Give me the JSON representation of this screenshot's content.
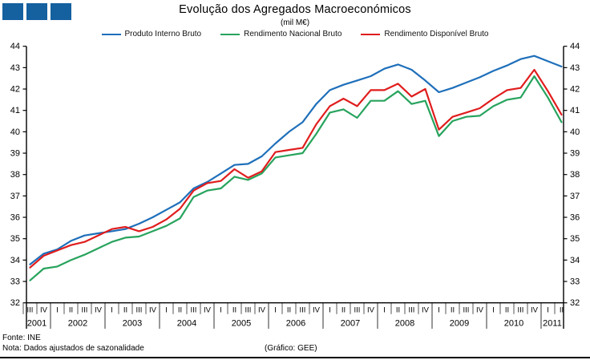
{
  "title": "Evolução dos Agregados Macroeconómicos",
  "subtitle": "(mil M€)",
  "legend": [
    {
      "label": "Produto Interno Bruto",
      "color": "#1e6fba"
    },
    {
      "label": "Rendimento Nacional Bruto",
      "color": "#27a35d"
    },
    {
      "label": "Rendimento Disponível Bruto",
      "color": "#e01d1d"
    }
  ],
  "footer": {
    "source": "Fonte: INE",
    "note": "Nota: Dados ajustados de sazonalidade",
    "credit": "(Gráfico: GEE)"
  },
  "colors": {
    "axis": "#000000",
    "quarter_tick": "#555555",
    "year_separator": "#999999",
    "logo_square": "#15609f"
  },
  "chart_data": {
    "type": "line",
    "title": "Evolução dos Agregados Macroeconómicos",
    "subtitle": "(mil M€)",
    "ylabel": "",
    "xlabel": "",
    "ylim": [
      32,
      44
    ],
    "ytick_step": 1,
    "grid": false,
    "legend_position": "top",
    "x_quarters": [
      "III",
      "IV",
      "I",
      "II",
      "III",
      "IV",
      "I",
      "II",
      "III",
      "IV",
      "I",
      "II",
      "III",
      "IV",
      "I",
      "II",
      "III",
      "IV",
      "I",
      "II",
      "III",
      "IV",
      "I",
      "II",
      "III",
      "IV",
      "I",
      "II",
      "III",
      "IV",
      "I",
      "II",
      "III",
      "IV",
      "I",
      "II",
      "III",
      "IV",
      "I",
      "II"
    ],
    "years": [
      {
        "label": "2001",
        "quarters": 2
      },
      {
        "label": "2002",
        "quarters": 4
      },
      {
        "label": "2003",
        "quarters": 4
      },
      {
        "label": "2004",
        "quarters": 4
      },
      {
        "label": "2005",
        "quarters": 4
      },
      {
        "label": "2006",
        "quarters": 4
      },
      {
        "label": "2007",
        "quarters": 4
      },
      {
        "label": "2008",
        "quarters": 4
      },
      {
        "label": "2009",
        "quarters": 4
      },
      {
        "label": "2010",
        "quarters": 4
      },
      {
        "label": "2011",
        "quarters": 2
      }
    ],
    "series": [
      {
        "name": "Produto Interno Bruto",
        "color": "#1e6fba",
        "values": [
          33.8,
          34.3,
          34.5,
          34.9,
          35.15,
          35.25,
          35.35,
          35.45,
          35.7,
          36.0,
          36.35,
          36.7,
          37.35,
          37.65,
          38.05,
          38.45,
          38.5,
          38.85,
          39.45,
          40.0,
          40.45,
          41.3,
          41.95,
          42.2,
          42.4,
          42.6,
          42.95,
          43.15,
          42.9,
          42.4,
          41.85,
          42.05,
          42.3,
          42.55,
          42.85,
          43.1,
          43.4,
          43.55,
          43.3,
          43.05
        ]
      },
      {
        "name": "Rendimento Nacional Bruto",
        "color": "#27a35d",
        "values": [
          33.05,
          33.6,
          33.7,
          34.0,
          34.25,
          34.55,
          34.85,
          35.05,
          35.1,
          35.35,
          35.6,
          35.95,
          36.95,
          37.25,
          37.35,
          37.9,
          37.75,
          38.05,
          38.8,
          38.9,
          39.0,
          39.9,
          40.9,
          41.05,
          40.65,
          41.45,
          41.45,
          41.9,
          41.3,
          41.45,
          39.8,
          40.5,
          40.7,
          40.75,
          41.2,
          41.5,
          41.6,
          42.6,
          41.6,
          40.45
        ]
      },
      {
        "name": "Rendimento Disponível Bruto",
        "color": "#e01d1d",
        "values": [
          33.65,
          34.2,
          34.45,
          34.7,
          34.85,
          35.15,
          35.45,
          35.55,
          35.35,
          35.55,
          35.9,
          36.4,
          37.25,
          37.6,
          37.7,
          38.25,
          37.85,
          38.15,
          39.05,
          39.15,
          39.25,
          40.35,
          41.2,
          41.55,
          41.2,
          41.95,
          41.95,
          42.25,
          41.65,
          42.0,
          40.1,
          40.7,
          40.9,
          41.1,
          41.55,
          41.95,
          42.05,
          42.9,
          41.9,
          40.8
        ]
      }
    ]
  }
}
